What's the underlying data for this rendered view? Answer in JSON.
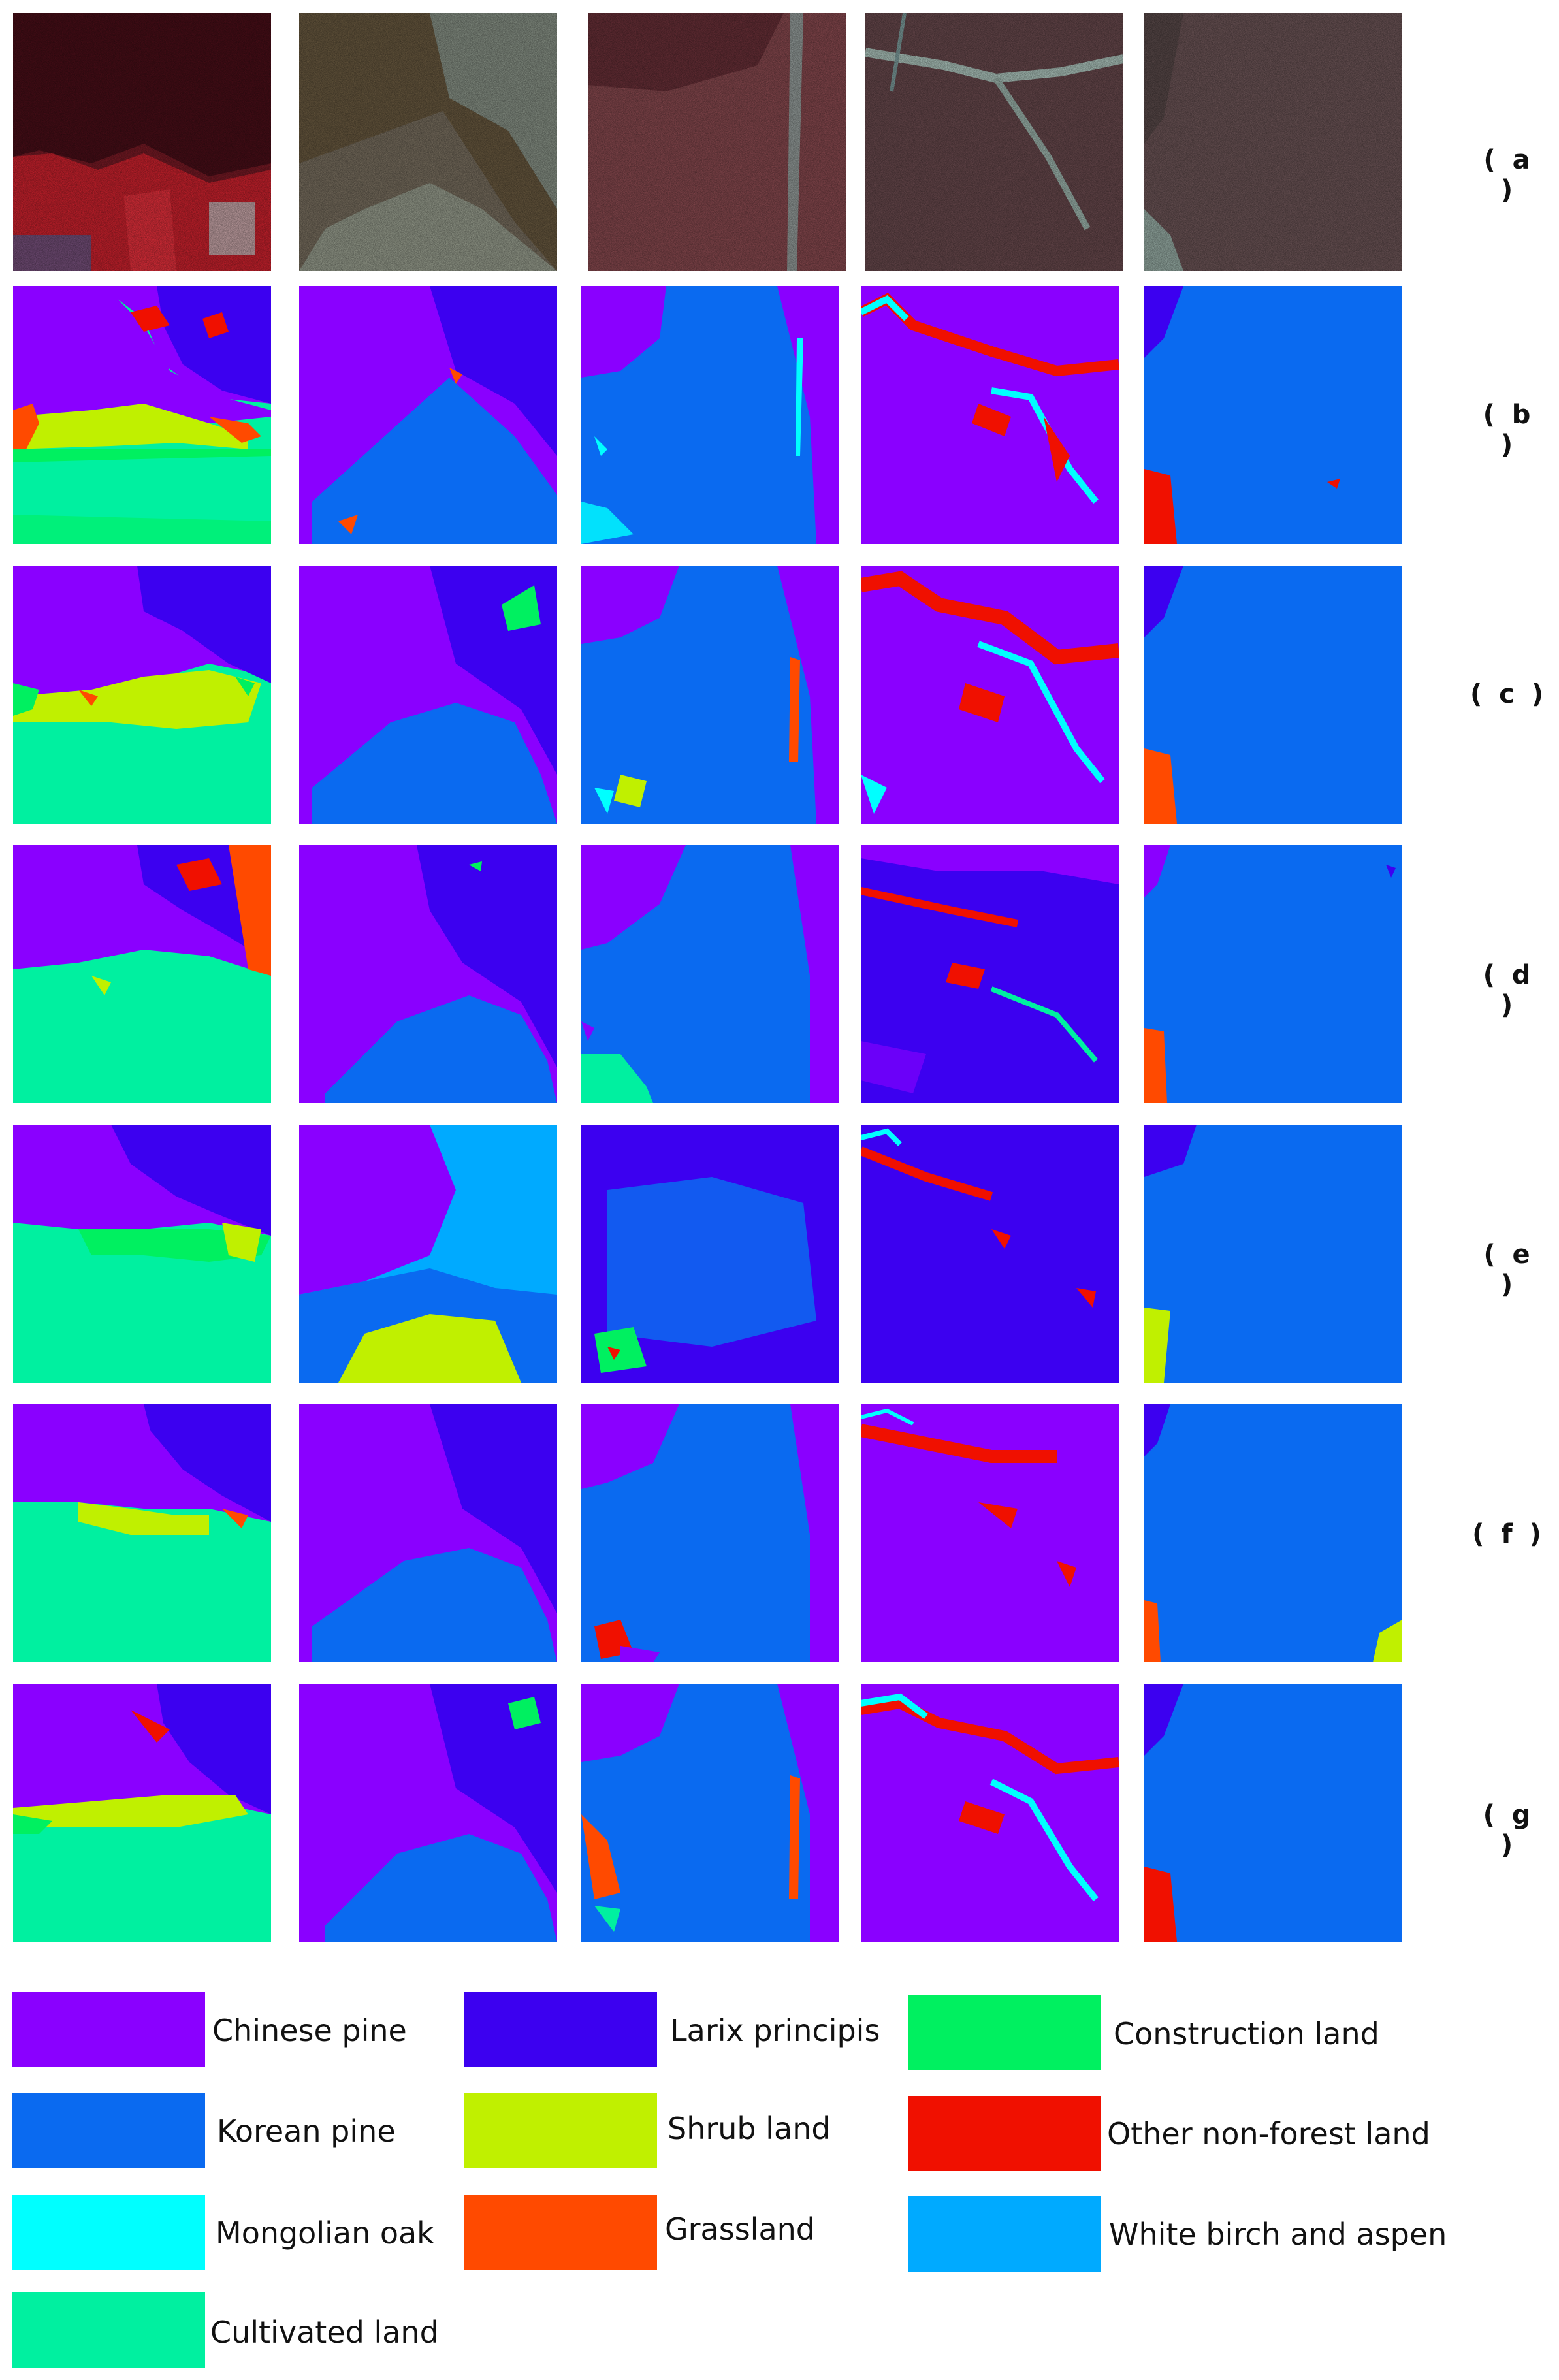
{
  "row_labels": [
    "( a )",
    "( b )",
    "( c )",
    "( d )",
    "( e )",
    "( f )",
    "( g )"
  ],
  "legend": [
    {
      "label": "Chinese pine",
      "color": "#8A00FF"
    },
    {
      "label": "Larix principis",
      "color": "#3C00F0"
    },
    {
      "label": "Construction land",
      "color": "#00F060"
    },
    {
      "label": "Korean pine",
      "color": "#0A6AF0"
    },
    {
      "label": "Shrub land",
      "color": "#C0F000"
    },
    {
      "label": "Other non-forest land",
      "color": "#F01000"
    },
    {
      "label": "Mongolian oak",
      "color": "#00FFFF"
    },
    {
      "label": "Grassland",
      "color": "#FF4A00"
    },
    {
      "label": "White birch and aspen",
      "color": "#00AAFF"
    },
    {
      "label": "Cultivated land",
      "color": "#00F0A0"
    }
  ],
  "colors": {
    "chinese_pine": "#8A00FF",
    "larix": "#3C00F0",
    "construction": "#00F060",
    "korean": "#0A6AF0",
    "shrub": "#C0F000",
    "nonforest": "#F01000",
    "oak": "#00FFFF",
    "grass": "#FF4A00",
    "birch": "#00AAFF",
    "cultivated": "#00F0A0"
  }
}
